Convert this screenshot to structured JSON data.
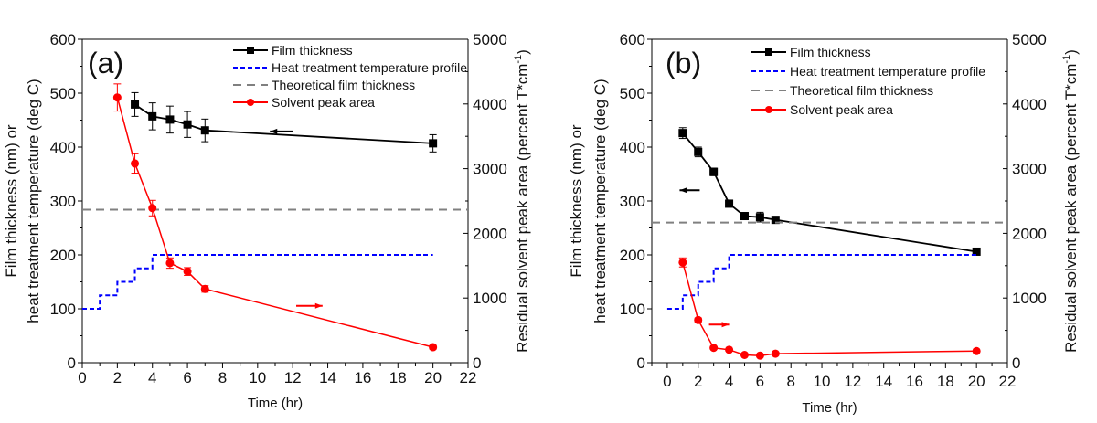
{
  "chart_data": [
    {
      "type": "line",
      "panel_label": "(a)",
      "xlabel": "Time (hr)",
      "ylabel_lines": [
        "Film thickness (nm) or",
        "heat treatment temperature (deg C)"
      ],
      "y2label": "Residual solvent peak area (percent T*cm-1)",
      "y2label_main": "Residual solvent peak area (percent T*cm",
      "y2label_sup": "-1",
      "y2label_close": ")",
      "xlim": [
        0,
        22
      ],
      "ylim": [
        0,
        600
      ],
      "y2lim": [
        0,
        5000
      ],
      "x_ticks": [
        "0",
        "2",
        "4",
        "6",
        "8",
        "10",
        "12",
        "14",
        "16",
        "18",
        "20",
        "22"
      ],
      "y_ticks": [
        "0",
        "100",
        "200",
        "300",
        "400",
        "500",
        "600"
      ],
      "y2_ticks": [
        "0",
        "1000",
        "2000",
        "3000",
        "4000",
        "5000"
      ],
      "legend": [
        "Film thickness",
        "Heat treatment temperature profile",
        "Theoretical film thickness",
        "Solvent peak area"
      ],
      "legend_position": "top-right",
      "series": [
        {
          "name": "Film thickness",
          "axis": "left",
          "color": "#000000",
          "marker": "square",
          "x": [
            3,
            4,
            5,
            6,
            7,
            20
          ],
          "y": [
            479,
            457,
            451,
            442,
            431,
            407
          ],
          "err": [
            22,
            25,
            25,
            24,
            21,
            16
          ]
        },
        {
          "name": "Heat treatment temperature profile",
          "axis": "left",
          "color": "#0000ff",
          "style": "step",
          "x": [
            0,
            1,
            1,
            2,
            2,
            3,
            3,
            4,
            4,
            20
          ],
          "y": [
            100,
            100,
            125,
            125,
            150,
            150,
            175,
            175,
            200,
            200
          ]
        },
        {
          "name": "Theoretical film thickness",
          "axis": "left",
          "color": "#808080",
          "style": "dashed",
          "value": 284
        },
        {
          "name": "Solvent peak area",
          "axis": "right",
          "color": "#ff0000",
          "marker": "circle",
          "x": [
            2,
            3,
            4,
            5,
            6,
            7,
            20
          ],
          "y": [
            4100,
            3080,
            2390,
            1540,
            1410,
            1140,
            240
          ],
          "err": [
            210,
            150,
            120,
            80,
            60,
            50,
            30
          ]
        }
      ],
      "annotations": [
        {
          "type": "arrow",
          "direction": "left",
          "color": "#000000",
          "x": [
            12.0,
            10.7
          ],
          "y": 429,
          "axis": "left"
        },
        {
          "type": "arrow",
          "direction": "right",
          "color": "#ff0000",
          "x": [
            12.2,
            13.7
          ],
          "y": 880,
          "axis": "right"
        }
      ]
    },
    {
      "type": "line",
      "panel_label": "(b)",
      "xlabel": "Time (hr)",
      "ylabel_lines": [
        "Film thickness (nm) or",
        "heat treatment temperature (deg C)"
      ],
      "y2label": "Residual solvent peak area (percent T*cm-1)",
      "y2label_main": "Residual solvent peak area (percent T*cm",
      "y2label_sup": "-1",
      "y2label_close": ")",
      "xlim": [
        -1,
        22
      ],
      "ylim": [
        0,
        600
      ],
      "y2lim": [
        0,
        5000
      ],
      "x_ticks": [
        "0",
        "2",
        "4",
        "6",
        "8",
        "10",
        "12",
        "14",
        "16",
        "18",
        "20",
        "22"
      ],
      "y_ticks": [
        "0",
        "100",
        "200",
        "300",
        "400",
        "500",
        "600"
      ],
      "y2_ticks": [
        "0",
        "1000",
        "2000",
        "3000",
        "4000",
        "5000"
      ],
      "legend": [
        "Film thickness",
        "Heat treatment temperature profile",
        "Theoretical film thickness",
        "Solvent peak area"
      ],
      "legend_position": "top-right",
      "series": [
        {
          "name": "Film thickness",
          "axis": "left",
          "color": "#000000",
          "marker": "square",
          "x": [
            1,
            2,
            3,
            4,
            5,
            6,
            7,
            20
          ],
          "y": [
            426,
            391,
            354,
            295,
            272,
            270,
            265,
            206
          ],
          "err": [
            10,
            9,
            7,
            6,
            5,
            9,
            4,
            4
          ]
        },
        {
          "name": "Heat treatment temperature profile",
          "axis": "left",
          "color": "#0000ff",
          "style": "step",
          "x": [
            0,
            1,
            1,
            2,
            2,
            3,
            3,
            4,
            4,
            20
          ],
          "y": [
            100,
            100,
            125,
            125,
            150,
            150,
            175,
            175,
            200,
            200
          ]
        },
        {
          "name": "Theoretical film thickness",
          "axis": "left",
          "color": "#808080",
          "style": "dashed",
          "value": 260
        },
        {
          "name": "Solvent peak area",
          "axis": "right",
          "color": "#ff0000",
          "marker": "circle",
          "x": [
            1,
            2,
            3,
            4,
            5,
            6,
            7,
            20
          ],
          "y": [
            1550,
            660,
            230,
            200,
            120,
            110,
            140,
            180
          ],
          "err": [
            70,
            30,
            20,
            15,
            10,
            10,
            10,
            10
          ]
        }
      ],
      "annotations": [
        {
          "type": "arrow",
          "direction": "left",
          "color": "#000000",
          "x": [
            2.1,
            0.8
          ],
          "y": 320,
          "axis": "left"
        },
        {
          "type": "arrow",
          "direction": "right",
          "color": "#ff0000",
          "x": [
            2.7,
            4.0
          ],
          "y": 590,
          "axis": "right"
        }
      ]
    }
  ]
}
